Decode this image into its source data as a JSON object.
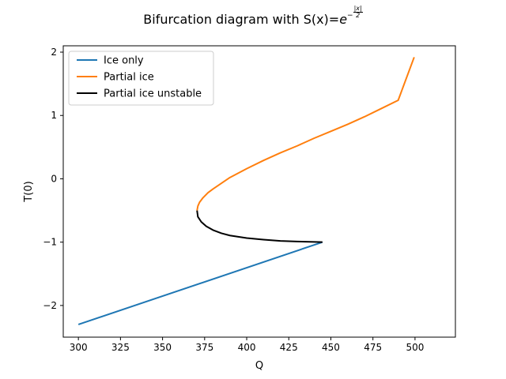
{
  "chart_data": {
    "type": "line",
    "title": "Bifurcation diagram with S(x)=",
    "title_math": {
      "base": "e",
      "exponent_sign": "−",
      "exponent_num": "|x|",
      "exponent_den": "2"
    },
    "xlabel": "Q",
    "ylabel": "T(0)",
    "xlim": [
      291,
      524
    ],
    "ylim": [
      -2.5,
      2.1
    ],
    "xticks": [
      300,
      325,
      350,
      375,
      400,
      425,
      450,
      475,
      500
    ],
    "yticks": [
      -2,
      -1,
      0,
      1,
      2
    ],
    "ytick_labels": [
      "−2",
      "−1",
      "0",
      "1",
      "2"
    ],
    "grid": false,
    "legend_position": "top-left",
    "series": [
      {
        "name": "Ice only",
        "color": "#1f77b4",
        "points": [
          [
            300,
            -2.3
          ],
          [
            445,
            -1.0
          ]
        ]
      },
      {
        "name": "Partial ice",
        "color": "#ff7f0e",
        "points": [
          [
            370.5,
            -0.5
          ],
          [
            371,
            -0.43
          ],
          [
            372,
            -0.37
          ],
          [
            374,
            -0.3
          ],
          [
            377,
            -0.22
          ],
          [
            380,
            -0.16
          ],
          [
            385,
            -0.07
          ],
          [
            390,
            0.02
          ],
          [
            400,
            0.16
          ],
          [
            410,
            0.29
          ],
          [
            420,
            0.41
          ],
          [
            430,
            0.52
          ],
          [
            440,
            0.64
          ],
          [
            450,
            0.75
          ],
          [
            460,
            0.86
          ],
          [
            470,
            0.98
          ],
          [
            480,
            1.11
          ],
          [
            490,
            1.24
          ],
          [
            499.5,
            1.92
          ]
        ]
      },
      {
        "name": "Partial ice unstable",
        "color": "#000000",
        "points": [
          [
            370.5,
            -0.5
          ],
          [
            371,
            -0.6
          ],
          [
            373,
            -0.68
          ],
          [
            376,
            -0.75
          ],
          [
            380,
            -0.81
          ],
          [
            385,
            -0.86
          ],
          [
            390,
            -0.895
          ],
          [
            400,
            -0.935
          ],
          [
            410,
            -0.96
          ],
          [
            420,
            -0.98
          ],
          [
            430,
            -0.99
          ],
          [
            440,
            -0.997
          ],
          [
            445,
            -1.0
          ]
        ]
      }
    ]
  },
  "colors": {
    "axes": "#000000",
    "background": "#ffffff"
  }
}
